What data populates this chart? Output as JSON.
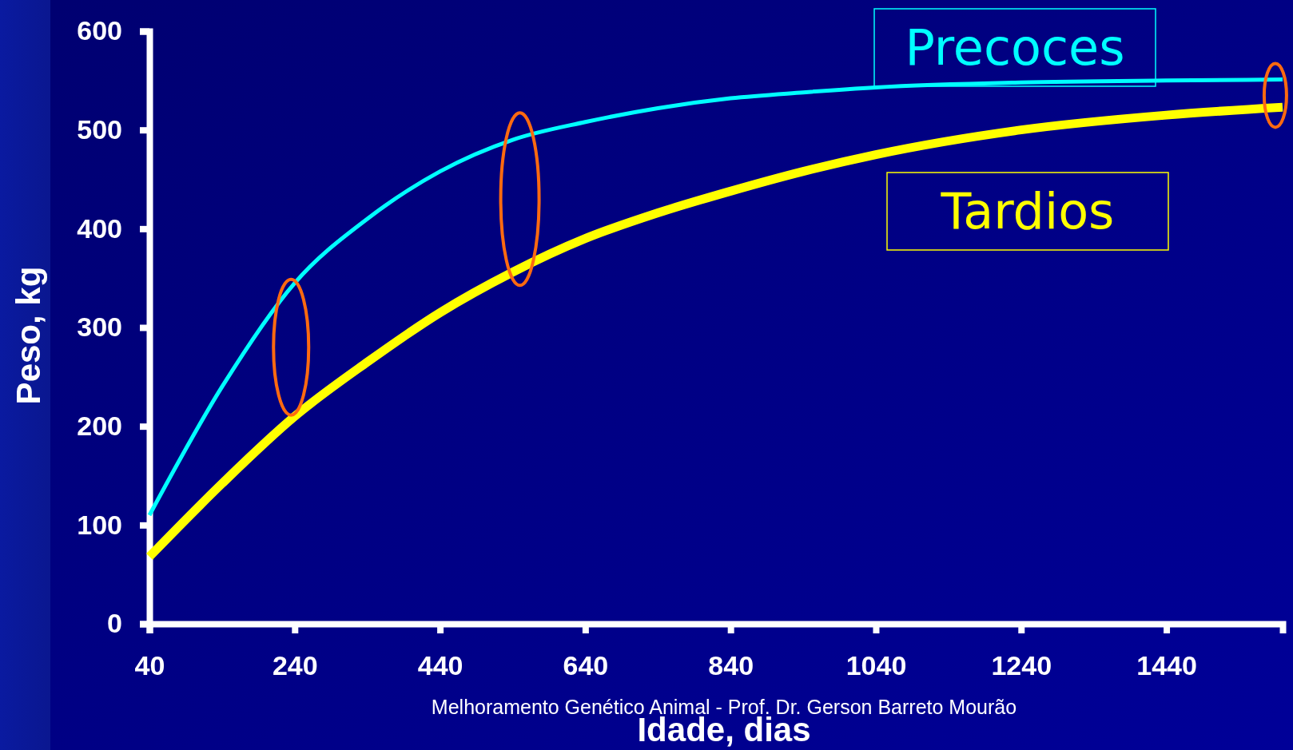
{
  "chart_data": {
    "type": "line",
    "xlabel": "Idade, dias",
    "ylabel": "Peso, kg",
    "xlim": [
      40,
      1600
    ],
    "ylim": [
      0,
      600
    ],
    "xticks": [
      40,
      240,
      440,
      640,
      840,
      1040,
      1240,
      1440
    ],
    "yticks": [
      0,
      100,
      200,
      300,
      400,
      500,
      600
    ],
    "grid": false,
    "marker": "none",
    "line_style": "solid",
    "annotations": [
      "Melhoramento Genético Animal - Prof. Dr. Gerson Barreto Mourão"
    ],
    "series": [
      {
        "name": "Precoces",
        "color": "#00ffff",
        "x": [
          40,
          140,
          240,
          340,
          440,
          540,
          640,
          740,
          840,
          940,
          1040,
          1240,
          1440,
          1600
        ],
        "values": [
          110,
          240,
          345,
          410,
          458,
          490,
          508,
          522,
          532,
          538,
          543,
          548,
          550,
          551
        ]
      },
      {
        "name": "Tardios",
        "color": "#ffff00",
        "x": [
          40,
          140,
          240,
          340,
          440,
          540,
          640,
          740,
          840,
          940,
          1040,
          1240,
          1440,
          1600
        ],
        "values": [
          68,
          142,
          210,
          265,
          315,
          356,
          390,
          416,
          438,
          458,
          475,
          500,
          515,
          523
        ]
      }
    ]
  }
}
